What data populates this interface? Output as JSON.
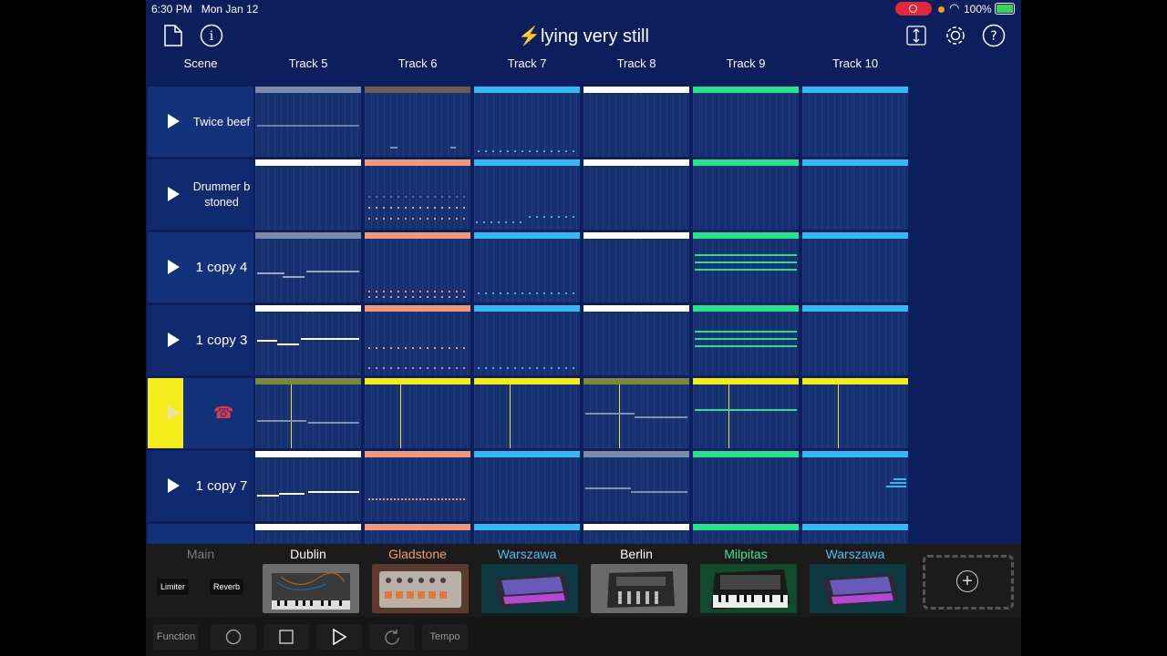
{
  "status": {
    "time": "6:30 PM",
    "date": "Mon Jan 12",
    "battery": "100%"
  },
  "toolbar": {
    "title": "lying very still",
    "bolt": "⚡"
  },
  "headers": {
    "scene": "Scene",
    "tracks": [
      "Track 5",
      "Track 6",
      "Track 7",
      "Track 8",
      "Track 9",
      "Track 10"
    ]
  },
  "scenes": [
    {
      "label": "Twice beef"
    },
    {
      "label": "Drummer b stoned"
    },
    {
      "label": "1 copy 4"
    },
    {
      "label": "1 copy 3"
    },
    {
      "label": ""
    },
    {
      "label": "1 copy 7"
    },
    {
      "label": ""
    }
  ],
  "instruments": {
    "main": "Main",
    "limiter": "Limiter",
    "reverb": "Reverb",
    "list": [
      {
        "name": "Dublin",
        "color": "#ffffff"
      },
      {
        "name": "Gladstone",
        "color": "#f29a74"
      },
      {
        "name": "Warszawa",
        "color": "#4fc0f0"
      },
      {
        "name": "Berlin",
        "color": "#ffffff"
      },
      {
        "name": "Milpitas",
        "color": "#37e59a"
      },
      {
        "name": "Warszawa",
        "color": "#4fc0f0"
      }
    ]
  },
  "transport": {
    "function": "Function",
    "tempo": "Tempo"
  },
  "colors": {
    "bg": "#0c1f5c",
    "yellow": "#f4ed1b",
    "green": "#27e291",
    "blue": "#39b8ef",
    "salmon": "#f09a77",
    "grey": "#7c8aa8",
    "brown": "#6b5b5b",
    "olive": "#7a8a3c"
  }
}
